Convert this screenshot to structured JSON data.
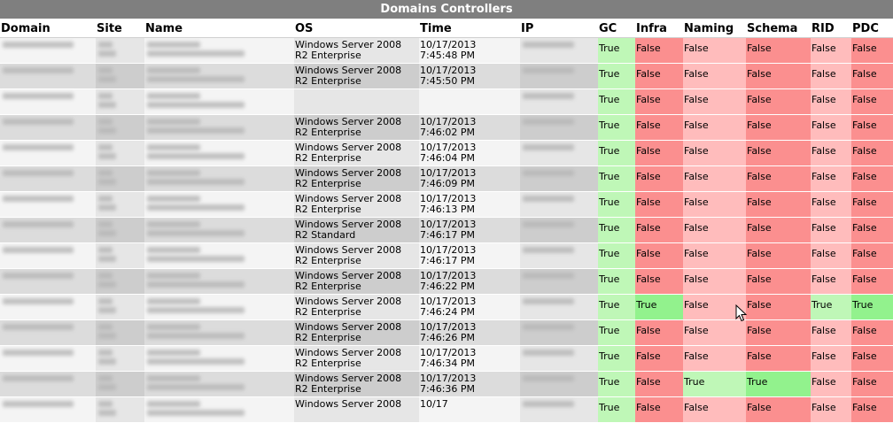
{
  "title": "Domains Controllers",
  "columns": [
    "Domain",
    "Site",
    "Name",
    "OS",
    "Time",
    "IP",
    "GC",
    "Infra",
    "Naming",
    "Schema",
    "RID",
    "PDC"
  ],
  "colors": {
    "header_bg": "#7f7f7f",
    "true_light": "#bff7b7",
    "true_dark": "#92f28d",
    "false_light": "#ffbcbc",
    "false_dark": "#fb8f8f"
  },
  "rows": [
    {
      "os1": "Windows Server 2008",
      "os2": "R2 Enterprise",
      "date": "10/17/2013",
      "time": "7:45:48 PM",
      "gc": "True",
      "infra": "False",
      "naming": "False",
      "schema": "False",
      "rid": "False",
      "pdc": "False"
    },
    {
      "os1": "Windows Server 2008",
      "os2": "R2 Enterprise",
      "date": "10/17/2013",
      "time": "7:45:50 PM",
      "gc": "True",
      "infra": "False",
      "naming": "False",
      "schema": "False",
      "rid": "False",
      "pdc": "False"
    },
    {
      "os1": "",
      "os2": "",
      "date": "",
      "time": "",
      "gc": "True",
      "infra": "False",
      "naming": "False",
      "schema": "False",
      "rid": "False",
      "pdc": "False"
    },
    {
      "os1": "Windows Server 2008",
      "os2": "R2 Enterprise",
      "date": "10/17/2013",
      "time": "7:46:02 PM",
      "gc": "True",
      "infra": "False",
      "naming": "False",
      "schema": "False",
      "rid": "False",
      "pdc": "False"
    },
    {
      "os1": "Windows Server 2008",
      "os2": "R2 Enterprise",
      "date": "10/17/2013",
      "time": "7:46:04 PM",
      "gc": "True",
      "infra": "False",
      "naming": "False",
      "schema": "False",
      "rid": "False",
      "pdc": "False"
    },
    {
      "os1": "Windows Server 2008",
      "os2": "R2 Enterprise",
      "date": "10/17/2013",
      "time": "7:46:09 PM",
      "gc": "True",
      "infra": "False",
      "naming": "False",
      "schema": "False",
      "rid": "False",
      "pdc": "False"
    },
    {
      "os1": "Windows Server 2008",
      "os2": "R2 Enterprise",
      "date": "10/17/2013",
      "time": "7:46:13 PM",
      "gc": "True",
      "infra": "False",
      "naming": "False",
      "schema": "False",
      "rid": "False",
      "pdc": "False"
    },
    {
      "os1": "Windows Server 2008",
      "os2": "R2 Standard",
      "date": "10/17/2013",
      "time": "7:46:17 PM",
      "gc": "True",
      "infra": "False",
      "naming": "False",
      "schema": "False",
      "rid": "False",
      "pdc": "False"
    },
    {
      "os1": "Windows Server 2008",
      "os2": "R2 Enterprise",
      "date": "10/17/2013",
      "time": "7:46:17 PM",
      "gc": "True",
      "infra": "False",
      "naming": "False",
      "schema": "False",
      "rid": "False",
      "pdc": "False"
    },
    {
      "os1": "Windows Server 2008",
      "os2": "R2 Enterprise",
      "date": "10/17/2013",
      "time": "7:46:22 PM",
      "gc": "True",
      "infra": "False",
      "naming": "False",
      "schema": "False",
      "rid": "False",
      "pdc": "False"
    },
    {
      "os1": "Windows Server 2008",
      "os2": "R2 Enterprise",
      "date": "10/17/2013",
      "time": "7:46:24 PM",
      "gc": "True",
      "infra": "True",
      "naming": "False",
      "schema": "False",
      "rid": "True",
      "pdc": "True"
    },
    {
      "os1": "Windows Server 2008",
      "os2": "R2 Enterprise",
      "date": "10/17/2013",
      "time": "7:46:26 PM",
      "gc": "True",
      "infra": "False",
      "naming": "False",
      "schema": "False",
      "rid": "False",
      "pdc": "False"
    },
    {
      "os1": "Windows Server 2008",
      "os2": "R2 Enterprise",
      "date": "10/17/2013",
      "time": "7:46:34 PM",
      "gc": "True",
      "infra": "False",
      "naming": "False",
      "schema": "False",
      "rid": "False",
      "pdc": "False"
    },
    {
      "os1": "Windows Server 2008",
      "os2": "R2 Enterprise",
      "date": "10/17/2013",
      "time": "7:46:36 PM",
      "gc": "True",
      "infra": "False",
      "naming": "True",
      "schema": "True",
      "rid": "False",
      "pdc": "False"
    },
    {
      "os1": "Windows Server 2008",
      "os2": "",
      "date": "10/17",
      "time": "",
      "gc": "True",
      "infra": "False",
      "naming": "False",
      "schema": "False",
      "rid": "False",
      "pdc": "False"
    }
  ],
  "cursor_icon": "mouse-pointer-icon"
}
